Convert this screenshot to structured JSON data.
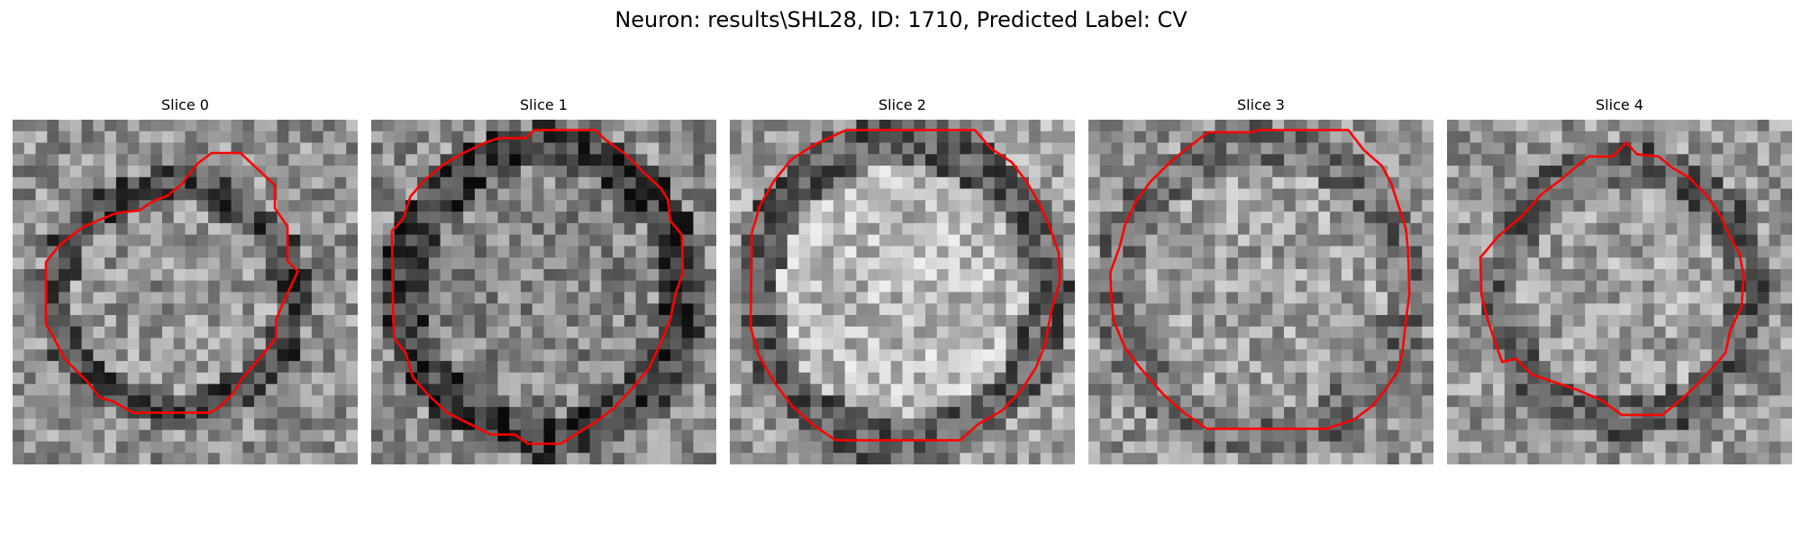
{
  "figure": {
    "title": "Neuron: results\\SHL28, ID: 1710, Predicted Label: CV"
  },
  "colors": {
    "background": "#ffffff",
    "contour": "#ff0000",
    "text": "#000000"
  },
  "panels": [
    {
      "title": "Slice 0",
      "image": "grayscale-cell-crop",
      "cell_brightness": "medium-bright interior, dark ring at left and bottom"
    },
    {
      "title": "Slice 1",
      "image": "grayscale-cell-crop",
      "cell_brightness": "mottled interior, thick dark ring"
    },
    {
      "title": "Slice 2",
      "image": "grayscale-cell-crop",
      "cell_brightness": "bright interior, dark rim on right"
    },
    {
      "title": "Slice 3",
      "image": "grayscale-cell-crop",
      "cell_brightness": "medium gray interior, faint ring"
    },
    {
      "title": "Slice 4",
      "image": "grayscale-cell-crop",
      "cell_brightness": "medium-bright interior, dark patches on right"
    }
  ]
}
